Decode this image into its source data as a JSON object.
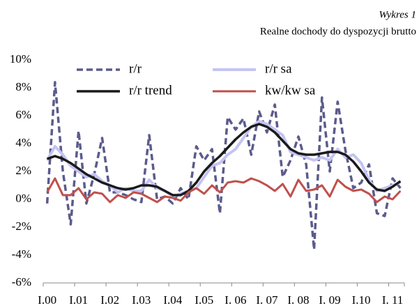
{
  "chart_data": {
    "type": "line",
    "title": "Wykres 1",
    "subtitle": "Realne dochody do dyspozycji brutto",
    "categories": [
      "I.00",
      null,
      null,
      null,
      "I.01",
      null,
      null,
      null,
      "I.02",
      null,
      null,
      null,
      "I.03",
      null,
      null,
      null,
      "I.04",
      null,
      null,
      null,
      "I.05",
      null,
      null,
      null,
      "I. 06",
      null,
      null,
      null,
      "I. 07",
      null,
      null,
      null,
      "I. 08",
      null,
      null,
      null,
      "I. 09",
      null,
      null,
      null,
      "I.10",
      null,
      null,
      null,
      "I. 11",
      null
    ],
    "series": [
      {
        "name": "r/r",
        "color": "#5b5b8c",
        "dashed": true,
        "width": 3.5,
        "values": [
          -0.3,
          8.4,
          2.0,
          -1.8,
          4.9,
          -0.3,
          1.8,
          4.4,
          0.5,
          0.5,
          0.3,
          0.0,
          -0.2,
          4.6,
          0.0,
          0.2,
          -0.3,
          0.8,
          0.0,
          3.8,
          2.8,
          3.6,
          -1.0,
          5.9,
          5.0,
          5.8,
          3.2,
          6.3,
          4.8,
          6.8,
          1.6,
          2.8,
          4.5,
          2.5,
          -3.6,
          7.3,
          2.0,
          7.0,
          3.5,
          0.8,
          1.2,
          2.5,
          -1.0,
          -1.2,
          1.5,
          0.8
        ]
      },
      {
        "name": "r/r sa",
        "color": "#c4c4f2",
        "dashed": false,
        "width": 4,
        "values": [
          2.8,
          3.8,
          3.2,
          2.4,
          2.0,
          1.6,
          1.8,
          1.3,
          1.0,
          0.5,
          0.8,
          0.6,
          0.6,
          1.4,
          0.8,
          0.6,
          0.2,
          0.4,
          0.6,
          0.8,
          1.6,
          2.4,
          2.6,
          3.2,
          3.6,
          4.4,
          5.2,
          5.6,
          5.4,
          5.0,
          4.6,
          3.4,
          3.2,
          3.0,
          2.8,
          3.0,
          2.8,
          3.6,
          3.0,
          3.2,
          2.6,
          1.4,
          0.6,
          0.8,
          1.0,
          1.2
        ]
      },
      {
        "name": "r/r trend",
        "color": "#1a1a1a",
        "dashed": false,
        "width": 3.5,
        "values": [
          2.9,
          3.1,
          2.9,
          2.6,
          2.2,
          1.8,
          1.5,
          1.2,
          1.0,
          0.8,
          0.7,
          0.8,
          1.0,
          1.0,
          0.9,
          0.6,
          0.3,
          0.3,
          0.6,
          1.2,
          2.0,
          2.6,
          3.1,
          3.7,
          4.3,
          4.8,
          5.2,
          5.4,
          5.2,
          4.8,
          4.2,
          3.6,
          3.3,
          3.2,
          3.2,
          3.3,
          3.4,
          3.4,
          3.2,
          2.7,
          2.0,
          1.2,
          0.7,
          0.6,
          0.9,
          1.3
        ]
      },
      {
        "name": "kw/kw sa",
        "color": "#c0504d",
        "dashed": false,
        "width": 3,
        "values": [
          0.5,
          1.5,
          0.3,
          0.3,
          0.8,
          0.0,
          0.5,
          0.4,
          -0.2,
          0.3,
          0.1,
          0.5,
          0.4,
          0.1,
          -0.2,
          0.2,
          0.1,
          -0.1,
          0.5,
          0.8,
          0.4,
          1.0,
          0.5,
          1.2,
          1.3,
          1.2,
          1.5,
          1.3,
          1.0,
          0.6,
          1.1,
          0.2,
          1.4,
          0.6,
          0.7,
          1.0,
          0.2,
          1.4,
          0.9,
          0.6,
          0.7,
          0.4,
          -0.2,
          0.2,
          0.0,
          0.6
        ]
      }
    ],
    "ylim": [
      -6,
      10
    ],
    "yticks": [
      {
        "value": -6,
        "label": "-6%"
      },
      {
        "value": -4,
        "label": "-4%"
      },
      {
        "value": -2,
        "label": "-2%"
      },
      {
        "value": 0,
        "label": "0%"
      },
      {
        "value": 2,
        "label": "2%"
      },
      {
        "value": 4,
        "label": "4%"
      },
      {
        "value": 6,
        "label": "6%"
      },
      {
        "value": 8,
        "label": "8%"
      },
      {
        "value": 10,
        "label": "10%"
      }
    ],
    "grid": false,
    "legend": "top"
  }
}
